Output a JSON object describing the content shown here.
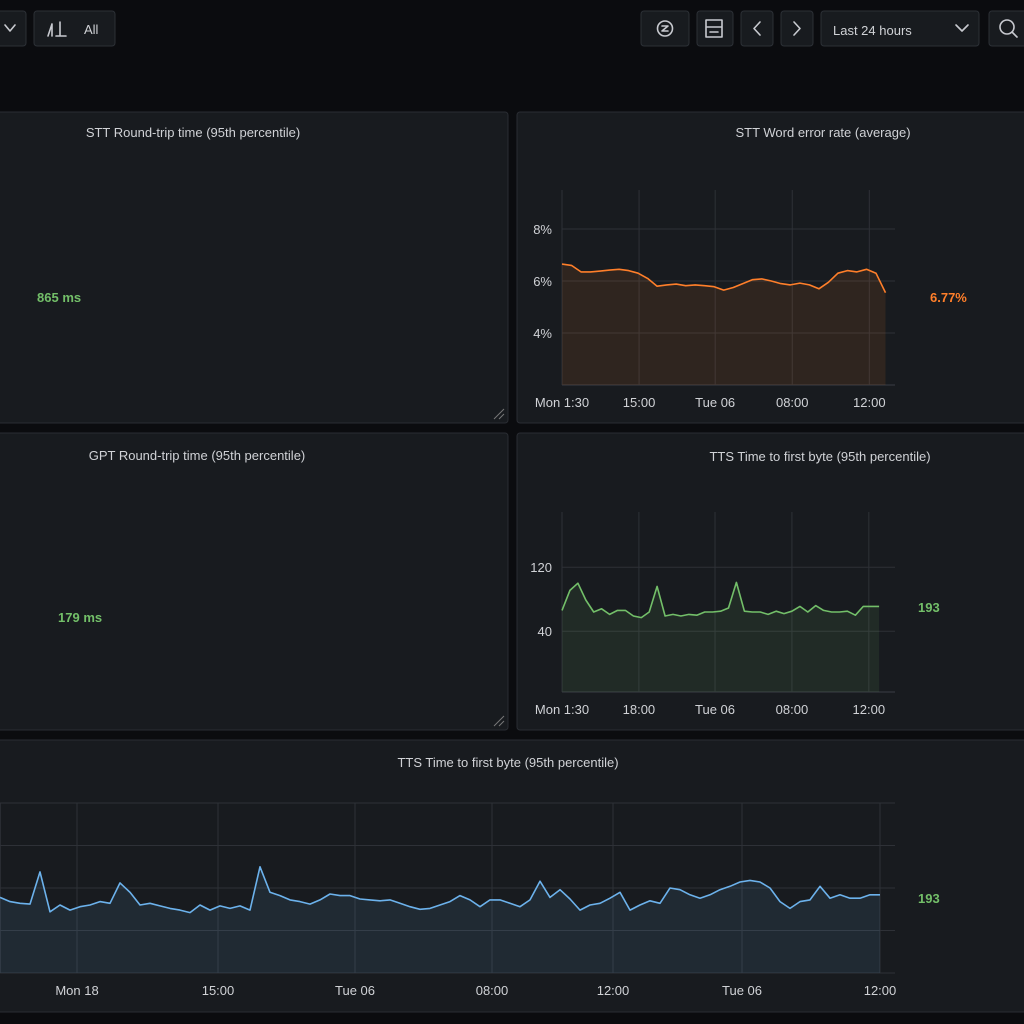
{
  "toolbar": {
    "filter_label": "All",
    "time_range": "Last 24 hours"
  },
  "chart_data": [
    {
      "type": "stat",
      "title": "STT Round-trip time (95th percentile)",
      "value": 865,
      "unit": "ms",
      "color": "#73bf69"
    },
    {
      "type": "line",
      "title": "STT Word error rate (average)",
      "xlim": [
        0,
        35
      ],
      "xticks": [
        {
          "value": 0,
          "label": "Mon 1:30"
        },
        {
          "value": 8.1,
          "label": "15:00"
        },
        {
          "value": 16.1,
          "label": "Tue 06"
        },
        {
          "value": 24.2,
          "label": "08:00"
        },
        {
          "value": 32.3,
          "label": "12:00"
        }
      ],
      "ylim": [
        2,
        9.5
      ],
      "yticks": [
        {
          "value": 4,
          "label": "4%"
        },
        {
          "value": 6,
          "label": "6%"
        },
        {
          "value": 8,
          "label": "8%"
        }
      ],
      "grid": true,
      "series": [
        {
          "color": "#ff7f2a",
          "values": [
            6.65,
            6.6,
            6.35,
            6.35,
            6.38,
            6.42,
            6.45,
            6.4,
            6.3,
            6.1,
            5.8,
            5.85,
            5.88,
            5.82,
            5.85,
            5.82,
            5.78,
            5.65,
            5.75,
            5.9,
            6.05,
            6.08,
            6.0,
            5.9,
            5.85,
            5.92,
            5.85,
            5.7,
            5.95,
            6.3,
            6.4,
            6.35,
            6.45,
            6.3,
            5.55
          ]
        }
      ],
      "stat": {
        "value": 6.77,
        "value_label": "6.77%",
        "color": "#ff7f2a"
      }
    },
    {
      "type": "stat",
      "title": "GPT Round-trip time (95th percentile)",
      "value": 179,
      "unit": "ms",
      "color": "#73bf69"
    },
    {
      "type": "line",
      "title": "TTS Time to first byte (95th percentile)",
      "xlim": [
        0,
        42
      ],
      "xticks": [
        {
          "value": 0,
          "label": "Mon 1:30"
        },
        {
          "value": 9.7,
          "label": "18:00"
        },
        {
          "value": 19.3,
          "label": "Tue 06"
        },
        {
          "value": 29,
          "label": "08:00"
        },
        {
          "value": 38.7,
          "label": "12:00"
        }
      ],
      "ylim": [
        -36,
        189
      ],
      "yticks": [
        40,
        120
      ],
      "grid": true,
      "series": [
        {
          "color": "#73bf69",
          "values": [
            66,
            91,
            100,
            79,
            64,
            68,
            61,
            66,
            66,
            59,
            57,
            64,
            96,
            59,
            61,
            59,
            61,
            60,
            64,
            64,
            65,
            69,
            101,
            65,
            64,
            64,
            61,
            65,
            62,
            65,
            71,
            64,
            72,
            66,
            64,
            64,
            65,
            60,
            71,
            71,
            71
          ]
        }
      ],
      "stat": {
        "value": 193,
        "color": "#73bf69"
      }
    },
    {
      "type": "line",
      "title": "TTS Time to first byte (95th percentile)",
      "xlim": [
        0,
        89.5
      ],
      "xticks": [
        {
          "value": 7.7,
          "label": "Mon 18"
        },
        {
          "value": 21.8,
          "label": "15:00"
        },
        {
          "value": 35.5,
          "label": "Tue 06"
        },
        {
          "value": 49.2,
          "label": "08:00"
        },
        {
          "value": 61.3,
          "label": "12:00"
        },
        {
          "value": 74.2,
          "label": "Tue 06"
        },
        {
          "value": 88,
          "label": "12:00"
        }
      ],
      "ylim": [
        0,
        200
      ],
      "yticks": [
        0,
        50,
        100,
        150,
        200
      ],
      "grid": true,
      "series": [
        {
          "color": "#6cb2ec",
          "values": [
            89,
            84,
            82,
            81,
            119,
            72,
            80,
            74,
            78,
            80,
            84,
            82,
            106,
            95,
            80,
            82,
            79,
            76,
            74,
            71,
            80,
            74,
            79,
            76,
            79,
            74,
            125,
            95,
            91,
            86,
            84,
            81,
            86,
            93,
            91,
            91,
            87,
            86,
            85,
            86,
            82,
            78,
            75,
            76,
            80,
            84,
            91,
            86,
            78,
            86,
            86,
            82,
            78,
            86,
            108,
            89,
            98,
            87,
            74,
            80,
            82,
            88,
            95,
            74,
            80,
            85,
            82,
            100,
            98,
            92,
            88,
            92,
            98,
            102,
            107,
            109,
            107,
            100,
            84,
            76,
            84,
            86,
            102,
            88,
            92,
            88,
            88,
            92,
            92
          ]
        }
      ],
      "stat": {
        "value": 193,
        "color": "#73bf69"
      }
    }
  ]
}
